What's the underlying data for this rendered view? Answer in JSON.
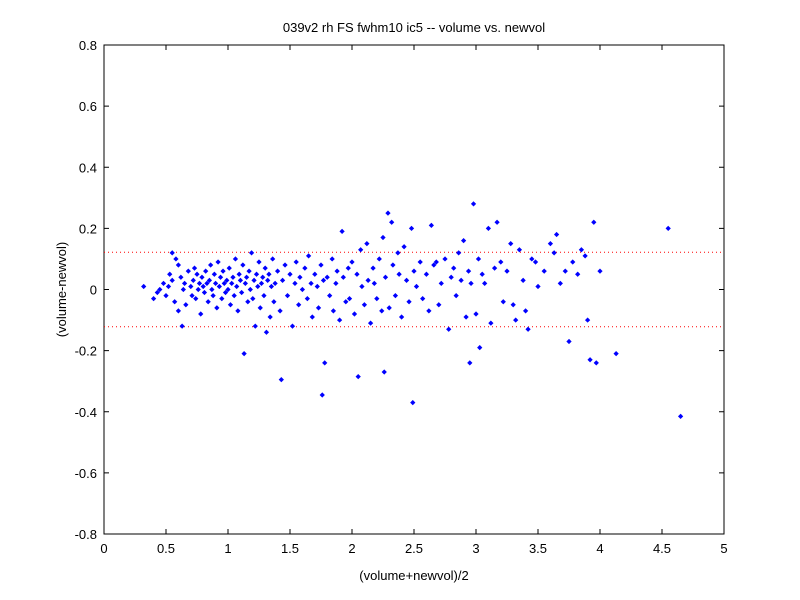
{
  "chart_data": {
    "type": "scatter",
    "title": "039v2 rh FS fwhm10 ic5 -- volume vs. newvol",
    "xlabel": "(volume+newvol)/2",
    "ylabel": "(volume-newvol)",
    "xlim": [
      0,
      5
    ],
    "ylim": [
      -0.8,
      0.8
    ],
    "xticks": [
      "0",
      "0.5",
      "1",
      "1.5",
      "2",
      "2.5",
      "3",
      "3.5",
      "4",
      "4.5",
      "5"
    ],
    "yticks": [
      "-0.8",
      "-0.6",
      "-0.4",
      "-0.2",
      "0",
      "0.2",
      "0.4",
      "0.6",
      "0.8"
    ],
    "grid": false,
    "legend": "none",
    "marker_color": "#0000ff",
    "reference_line_color": "#ff0000",
    "reference_lines": [
      0.122,
      -0.122
    ],
    "series": [
      {
        "points": [
          [
            0.32,
            0.01
          ],
          [
            0.4,
            -0.03
          ],
          [
            0.43,
            -0.01
          ],
          [
            0.45,
            0.0
          ],
          [
            0.48,
            0.02
          ],
          [
            0.5,
            -0.02
          ],
          [
            0.52,
            0.01
          ],
          [
            0.53,
            0.05
          ],
          [
            0.55,
            0.03
          ],
          [
            0.55,
            0.12
          ],
          [
            0.57,
            -0.04
          ],
          [
            0.58,
            0.1
          ],
          [
            0.6,
            -0.07
          ],
          [
            0.6,
            0.08
          ],
          [
            0.62,
            0.04
          ],
          [
            0.63,
            -0.12
          ],
          [
            0.64,
            0.0
          ],
          [
            0.65,
            0.02
          ],
          [
            0.66,
            -0.05
          ],
          [
            0.68,
            0.06
          ],
          [
            0.7,
            0.01
          ],
          [
            0.71,
            -0.02
          ],
          [
            0.72,
            0.03
          ],
          [
            0.73,
            0.07
          ],
          [
            0.74,
            -0.03
          ],
          [
            0.75,
            0.05
          ],
          [
            0.76,
            0.0
          ],
          [
            0.77,
            0.02
          ],
          [
            0.78,
            -0.08
          ],
          [
            0.79,
            0.04
          ],
          [
            0.8,
            0.01
          ],
          [
            0.81,
            -0.01
          ],
          [
            0.82,
            0.06
          ],
          [
            0.83,
            0.02
          ],
          [
            0.84,
            -0.04
          ],
          [
            0.85,
            0.03
          ],
          [
            0.86,
            0.08
          ],
          [
            0.87,
            0.0
          ],
          [
            0.88,
            -0.02
          ],
          [
            0.89,
            0.05
          ],
          [
            0.9,
            0.02
          ],
          [
            0.91,
            -0.06
          ],
          [
            0.92,
            0.09
          ],
          [
            0.93,
            0.01
          ],
          [
            0.94,
            0.04
          ],
          [
            0.95,
            -0.03
          ],
          [
            0.96,
            0.06
          ],
          [
            0.97,
            0.02
          ],
          [
            0.98,
            -0.01
          ],
          [
            0.99,
            0.03
          ],
          [
            1.0,
            0.0
          ],
          [
            1.01,
            0.07
          ],
          [
            1.02,
            -0.05
          ],
          [
            1.03,
            0.02
          ],
          [
            1.04,
            0.04
          ],
          [
            1.05,
            -0.02
          ],
          [
            1.06,
            0.1
          ],
          [
            1.07,
            0.01
          ],
          [
            1.08,
            -0.07
          ],
          [
            1.09,
            0.05
          ],
          [
            1.1,
            0.03
          ],
          [
            1.11,
            -0.01
          ],
          [
            1.12,
            0.08
          ],
          [
            1.13,
            -0.21
          ],
          [
            1.14,
            0.02
          ],
          [
            1.15,
            0.04
          ],
          [
            1.16,
            -0.04
          ],
          [
            1.17,
            0.06
          ],
          [
            1.18,
            0.0
          ],
          [
            1.19,
            0.12
          ],
          [
            1.2,
            -0.03
          ],
          [
            1.21,
            0.03
          ],
          [
            1.22,
            -0.12
          ],
          [
            1.23,
            0.05
          ],
          [
            1.24,
            0.01
          ],
          [
            1.25,
            0.09
          ],
          [
            1.26,
            -0.06
          ],
          [
            1.27,
            0.02
          ],
          [
            1.28,
            0.04
          ],
          [
            1.29,
            -0.02
          ],
          [
            1.3,
            0.07
          ],
          [
            1.31,
            -0.14
          ],
          [
            1.32,
            0.03
          ],
          [
            1.33,
            0.05
          ],
          [
            1.34,
            -0.09
          ],
          [
            1.35,
            0.01
          ],
          [
            1.36,
            0.1
          ],
          [
            1.37,
            -0.04
          ],
          [
            1.38,
            0.02
          ],
          [
            1.4,
            0.06
          ],
          [
            1.42,
            -0.07
          ],
          [
            1.43,
            -0.295
          ],
          [
            1.44,
            0.03
          ],
          [
            1.46,
            0.08
          ],
          [
            1.48,
            -0.02
          ],
          [
            1.5,
            0.05
          ],
          [
            1.52,
            -0.12
          ],
          [
            1.54,
            0.02
          ],
          [
            1.55,
            0.09
          ],
          [
            1.57,
            -0.05
          ],
          [
            1.58,
            0.04
          ],
          [
            1.6,
            0.0
          ],
          [
            1.62,
            0.07
          ],
          [
            1.64,
            -0.03
          ],
          [
            1.65,
            0.11
          ],
          [
            1.67,
            0.02
          ],
          [
            1.68,
            -0.09
          ],
          [
            1.7,
            0.05
          ],
          [
            1.72,
            0.01
          ],
          [
            1.73,
            -0.06
          ],
          [
            1.75,
            0.08
          ],
          [
            1.76,
            -0.345
          ],
          [
            1.77,
            0.03
          ],
          [
            1.78,
            -0.24
          ],
          [
            1.8,
            0.04
          ],
          [
            1.82,
            -0.02
          ],
          [
            1.84,
            0.1
          ],
          [
            1.85,
            -0.07
          ],
          [
            1.87,
            0.02
          ],
          [
            1.88,
            0.06
          ],
          [
            1.9,
            -0.1
          ],
          [
            1.92,
            0.19
          ],
          [
            1.93,
            0.04
          ],
          [
            1.95,
            -0.04
          ],
          [
            1.97,
            0.07
          ],
          [
            1.98,
            -0.03
          ],
          [
            2.0,
            0.09
          ],
          [
            2.02,
            -0.08
          ],
          [
            2.04,
            0.05
          ],
          [
            2.05,
            -0.285
          ],
          [
            2.07,
            0.13
          ],
          [
            2.08,
            0.01
          ],
          [
            2.1,
            -0.05
          ],
          [
            2.12,
            0.15
          ],
          [
            2.13,
            0.03
          ],
          [
            2.15,
            -0.11
          ],
          [
            2.17,
            0.07
          ],
          [
            2.18,
            0.02
          ],
          [
            2.2,
            -0.03
          ],
          [
            2.22,
            0.1
          ],
          [
            2.24,
            -0.07
          ],
          [
            2.25,
            0.17
          ],
          [
            2.26,
            -0.27
          ],
          [
            2.27,
            0.04
          ],
          [
            2.29,
            0.25
          ],
          [
            2.3,
            -0.06
          ],
          [
            2.32,
            0.22
          ],
          [
            2.33,
            0.08
          ],
          [
            2.35,
            -0.02
          ],
          [
            2.37,
            0.12
          ],
          [
            2.38,
            0.05
          ],
          [
            2.4,
            -0.09
          ],
          [
            2.42,
            0.14
          ],
          [
            2.44,
            0.03
          ],
          [
            2.46,
            -0.04
          ],
          [
            2.48,
            0.2
          ],
          [
            2.49,
            -0.37
          ],
          [
            2.5,
            0.06
          ],
          [
            2.52,
            0.01
          ],
          [
            2.55,
            0.09
          ],
          [
            2.57,
            -0.03
          ],
          [
            2.6,
            0.05
          ],
          [
            2.62,
            -0.07
          ],
          [
            2.64,
            0.21
          ],
          [
            2.66,
            0.08
          ],
          [
            2.68,
            0.09
          ],
          [
            2.7,
            -0.05
          ],
          [
            2.72,
            0.02
          ],
          [
            2.75,
            0.1
          ],
          [
            2.78,
            -0.13
          ],
          [
            2.8,
            0.04
          ],
          [
            2.82,
            0.07
          ],
          [
            2.84,
            -0.02
          ],
          [
            2.86,
            0.12
          ],
          [
            2.88,
            0.03
          ],
          [
            2.9,
            0.16
          ],
          [
            2.92,
            -0.09
          ],
          [
            2.94,
            0.06
          ],
          [
            2.95,
            -0.24
          ],
          [
            2.96,
            0.02
          ],
          [
            2.98,
            0.28
          ],
          [
            3.0,
            -0.08
          ],
          [
            3.02,
            0.1
          ],
          [
            3.03,
            -0.19
          ],
          [
            3.05,
            0.05
          ],
          [
            3.07,
            0.02
          ],
          [
            3.1,
            0.2
          ],
          [
            3.12,
            -0.11
          ],
          [
            3.15,
            0.07
          ],
          [
            3.17,
            0.22
          ],
          [
            3.2,
            0.09
          ],
          [
            3.22,
            -0.04
          ],
          [
            3.25,
            0.06
          ],
          [
            3.28,
            0.15
          ],
          [
            3.3,
            -0.05
          ],
          [
            3.32,
            -0.1
          ],
          [
            3.35,
            0.13
          ],
          [
            3.38,
            0.03
          ],
          [
            3.4,
            -0.07
          ],
          [
            3.42,
            -0.13
          ],
          [
            3.45,
            0.1
          ],
          [
            3.48,
            0.09
          ],
          [
            3.5,
            0.01
          ],
          [
            3.55,
            0.06
          ],
          [
            3.6,
            0.15
          ],
          [
            3.63,
            0.12
          ],
          [
            3.65,
            0.18
          ],
          [
            3.68,
            0.02
          ],
          [
            3.72,
            0.06
          ],
          [
            3.75,
            -0.17
          ],
          [
            3.78,
            0.09
          ],
          [
            3.82,
            0.05
          ],
          [
            3.85,
            0.13
          ],
          [
            3.88,
            0.11
          ],
          [
            3.9,
            -0.1
          ],
          [
            3.92,
            -0.23
          ],
          [
            3.95,
            0.22
          ],
          [
            3.97,
            -0.24
          ],
          [
            4.0,
            0.06
          ],
          [
            4.13,
            -0.21
          ],
          [
            4.55,
            0.2
          ],
          [
            4.65,
            -0.415
          ]
        ]
      }
    ]
  }
}
